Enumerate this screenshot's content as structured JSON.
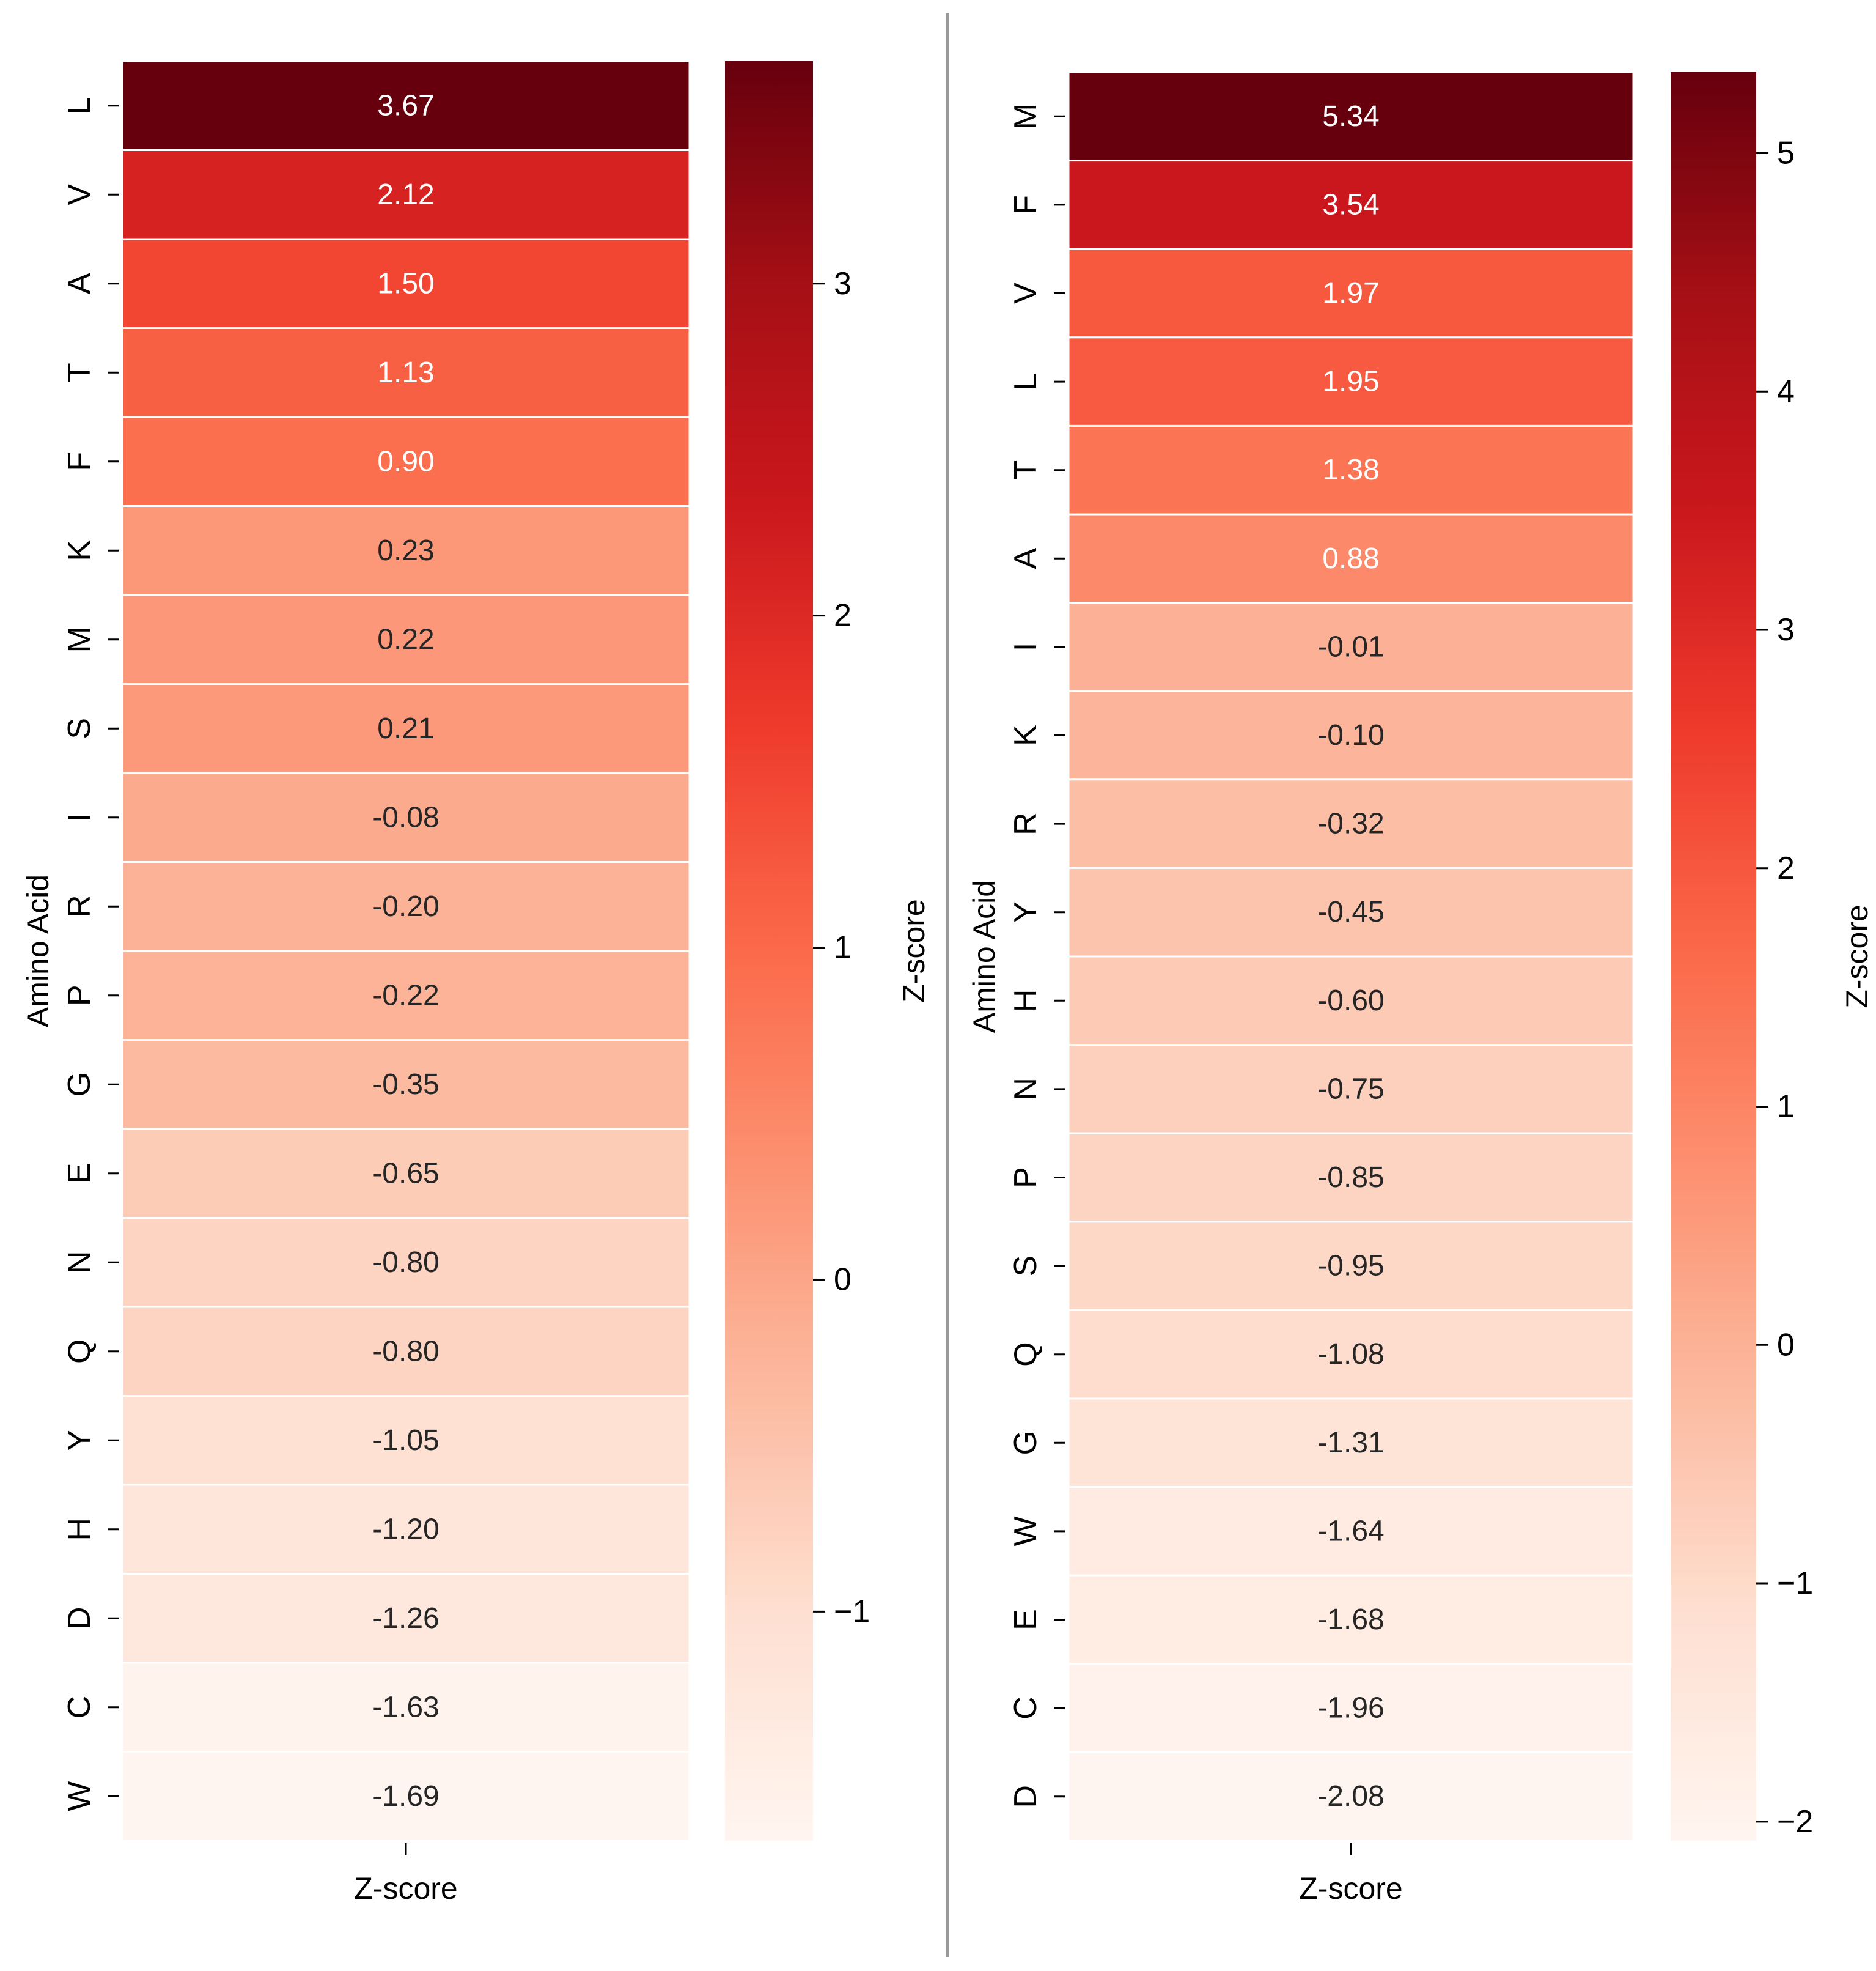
{
  "chart_data": [
    {
      "type": "heatmap",
      "xlabel": "Z-score",
      "ylabel": "Amino Acid",
      "colorbar_label": "Z-score",
      "colormap": "Reds",
      "vmin": -1.69,
      "vmax": 3.67,
      "colorbar_ticks": [
        {
          "value": 3,
          "label": "3"
        },
        {
          "value": 2,
          "label": "2"
        },
        {
          "value": 1,
          "label": "1"
        },
        {
          "value": 0,
          "label": "0"
        },
        {
          "value": -1,
          "label": "−1"
        }
      ],
      "rows": [
        {
          "label": "L",
          "value": 3.67,
          "text": "3.67"
        },
        {
          "label": "V",
          "value": 2.12,
          "text": "2.12"
        },
        {
          "label": "A",
          "value": 1.5,
          "text": "1.50"
        },
        {
          "label": "T",
          "value": 1.13,
          "text": "1.13"
        },
        {
          "label": "F",
          "value": 0.9,
          "text": "0.90"
        },
        {
          "label": "K",
          "value": 0.23,
          "text": "0.23"
        },
        {
          "label": "M",
          "value": 0.22,
          "text": "0.22"
        },
        {
          "label": "S",
          "value": 0.21,
          "text": "0.21"
        },
        {
          "label": "I",
          "value": -0.08,
          "text": "-0.08"
        },
        {
          "label": "R",
          "value": -0.2,
          "text": "-0.20"
        },
        {
          "label": "P",
          "value": -0.22,
          "text": "-0.22"
        },
        {
          "label": "G",
          "value": -0.35,
          "text": "-0.35"
        },
        {
          "label": "E",
          "value": -0.65,
          "text": "-0.65"
        },
        {
          "label": "N",
          "value": -0.8,
          "text": "-0.80"
        },
        {
          "label": "Q",
          "value": -0.8,
          "text": "-0.80"
        },
        {
          "label": "Y",
          "value": -1.05,
          "text": "-1.05"
        },
        {
          "label": "H",
          "value": -1.2,
          "text": "-1.20"
        },
        {
          "label": "D",
          "value": -1.26,
          "text": "-1.26"
        },
        {
          "label": "C",
          "value": -1.63,
          "text": "-1.63"
        },
        {
          "label": "W",
          "value": -1.69,
          "text": "-1.69"
        }
      ]
    },
    {
      "type": "heatmap",
      "xlabel": "Z-score",
      "ylabel": "Amino Acid",
      "colorbar_label": "Z-score",
      "colormap": "Reds",
      "vmin": -2.08,
      "vmax": 5.34,
      "colorbar_ticks": [
        {
          "value": 5,
          "label": "5"
        },
        {
          "value": 4,
          "label": "4"
        },
        {
          "value": 3,
          "label": "3"
        },
        {
          "value": 2,
          "label": "2"
        },
        {
          "value": 1,
          "label": "1"
        },
        {
          "value": 0,
          "label": "0"
        },
        {
          "value": -1,
          "label": "−1"
        },
        {
          "value": -2,
          "label": "−2"
        }
      ],
      "rows": [
        {
          "label": "M",
          "value": 5.34,
          "text": "5.34"
        },
        {
          "label": "F",
          "value": 3.54,
          "text": "3.54"
        },
        {
          "label": "V",
          "value": 1.97,
          "text": "1.97"
        },
        {
          "label": "L",
          "value": 1.95,
          "text": "1.95"
        },
        {
          "label": "T",
          "value": 1.38,
          "text": "1.38"
        },
        {
          "label": "A",
          "value": 0.88,
          "text": "0.88"
        },
        {
          "label": "I",
          "value": -0.01,
          "text": "-0.01"
        },
        {
          "label": "K",
          "value": -0.1,
          "text": "-0.10"
        },
        {
          "label": "R",
          "value": -0.32,
          "text": "-0.32"
        },
        {
          "label": "Y",
          "value": -0.45,
          "text": "-0.45"
        },
        {
          "label": "H",
          "value": -0.6,
          "text": "-0.60"
        },
        {
          "label": "N",
          "value": -0.75,
          "text": "-0.75"
        },
        {
          "label": "P",
          "value": -0.85,
          "text": "-0.85"
        },
        {
          "label": "S",
          "value": -0.95,
          "text": "-0.95"
        },
        {
          "label": "Q",
          "value": -1.08,
          "text": "-1.08"
        },
        {
          "label": "G",
          "value": -1.31,
          "text": "-1.31"
        },
        {
          "label": "W",
          "value": -1.64,
          "text": "-1.64"
        },
        {
          "label": "E",
          "value": -1.68,
          "text": "-1.68"
        },
        {
          "label": "C",
          "value": -1.96,
          "text": "-1.96"
        },
        {
          "label": "D",
          "value": -2.08,
          "text": "-2.08"
        }
      ]
    }
  ],
  "colors": {
    "divider": "#9a9a9a",
    "cell_border": "#ffffff",
    "axis": "#000000"
  }
}
